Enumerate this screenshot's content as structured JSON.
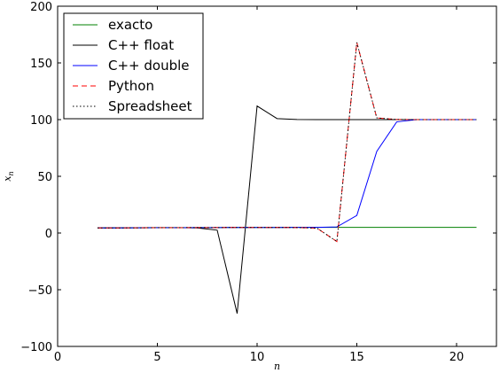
{
  "chart_data": {
    "type": "line",
    "title": "",
    "xlabel": "n",
    "ylabel": "x_n",
    "xlim": [
      0,
      22
    ],
    "ylim": [
      -100,
      200
    ],
    "xticks": [
      0,
      5,
      10,
      15,
      20
    ],
    "yticks": [
      -100,
      -50,
      0,
      50,
      100,
      150,
      200
    ],
    "xtick_labels": [
      "0",
      "5",
      "10",
      "15",
      "20"
    ],
    "ytick_labels": [
      "−100",
      "−50",
      "0",
      "50",
      "100",
      "150",
      "200"
    ],
    "grid": false,
    "legend_position": "top-left",
    "x": [
      2,
      3,
      4,
      5,
      6,
      7,
      8,
      9,
      10,
      11,
      12,
      13,
      14,
      15,
      16,
      17,
      18,
      19,
      20,
      21
    ],
    "series": [
      {
        "name": "exacto",
        "color": "#008000",
        "dash": "solid",
        "values": [
          4.5,
          4.5,
          4.6,
          4.7,
          4.7,
          4.8,
          4.8,
          4.9,
          4.9,
          4.9,
          5.0,
          5.0,
          5.0,
          5.0,
          5.0,
          5.0,
          5.0,
          5.0,
          5.0,
          5.0
        ]
      },
      {
        "name": "C++ float",
        "color": "#000000",
        "dash": "solid",
        "values": [
          4.5,
          4.6,
          4.7,
          4.8,
          4.8,
          4.5,
          2.5,
          -71,
          112,
          100.9,
          100.1,
          100.0,
          100.0,
          100.0,
          100.0,
          100.0,
          100.0,
          100.0,
          100.0,
          100.0
        ]
      },
      {
        "name": "C++ double",
        "color": "#0000ff",
        "dash": "solid",
        "values": [
          4.5,
          4.5,
          4.6,
          4.7,
          4.7,
          4.8,
          4.8,
          4.9,
          4.9,
          4.9,
          5.0,
          5.0,
          5.4,
          15.5,
          72,
          98,
          100,
          100,
          100,
          100
        ]
      },
      {
        "name": "Python",
        "color": "#ff0000",
        "dash": "dashed",
        "values": [
          4.5,
          4.5,
          4.6,
          4.7,
          4.7,
          4.8,
          4.8,
          4.9,
          4.9,
          4.9,
          4.8,
          4.3,
          -7.5,
          168,
          101.5,
          100.1,
          100.0,
          100.0,
          100.0,
          100.0
        ]
      },
      {
        "name": "Spreadsheet",
        "color": "#000000",
        "dash": "dotted",
        "values": [
          4.5,
          4.5,
          4.6,
          4.7,
          4.7,
          4.8,
          4.8,
          4.9,
          4.9,
          4.9,
          4.8,
          4.3,
          -7.5,
          168,
          101.5,
          100.1,
          100.0,
          100.0,
          100.0,
          100.0
        ]
      }
    ]
  }
}
